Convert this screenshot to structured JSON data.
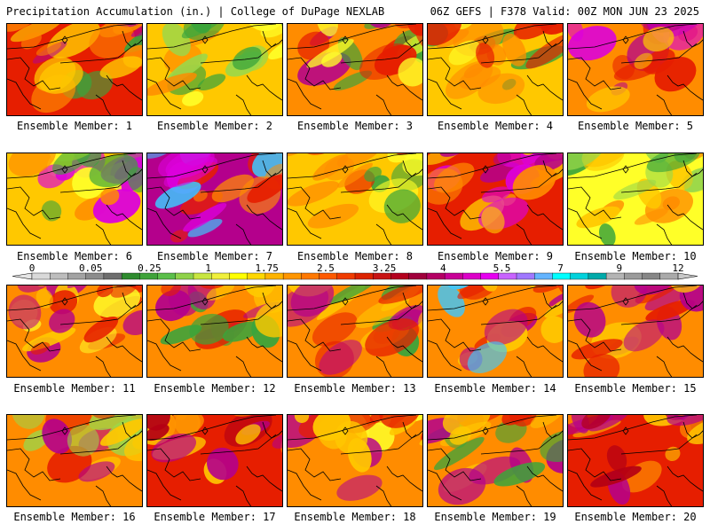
{
  "header": {
    "left": "Precipitation Accumulation (in.) | College of DuPage NEXLAB",
    "right": "06Z GEFS | F378 Valid: 00Z MON JUN 23 2025"
  },
  "caption_prefix": "Ensemble Member: ",
  "members": [
    "1",
    "2",
    "3",
    "4",
    "5",
    "6",
    "7",
    "8",
    "9",
    "10",
    "11",
    "12",
    "13",
    "14",
    "15",
    "16",
    "17",
    "18",
    "19",
    "20"
  ],
  "colorbar": {
    "labels": [
      "0",
      "0.05",
      "0.25",
      "1",
      "1.75",
      "2.5",
      "3.25",
      "4",
      "5.5",
      "7",
      "9",
      "12"
    ],
    "colors": [
      "#d9d9d9",
      "#bdbdbd",
      "#a3a3a3",
      "#8c8c8c",
      "#6e6e6e",
      "#2e8b2e",
      "#3fa33a",
      "#5bbf4a",
      "#8fd24a",
      "#c8e640",
      "#f0f03c",
      "#ffff00",
      "#ffd700",
      "#ffb400",
      "#ff9600",
      "#ff7800",
      "#ff5a00",
      "#f03c00",
      "#dc2300",
      "#c81414",
      "#b4001e",
      "#a0003c",
      "#b40064",
      "#c80096",
      "#dc00c8",
      "#e600f0",
      "#c864ff",
      "#a078ff",
      "#64b4ff",
      "#00ffff",
      "#00d2dc",
      "#00aaaa",
      "#b4b4b4",
      "#9b9b9b",
      "#878787",
      "#aaaaaa"
    ]
  },
  "palette": {
    "green": "#3ba43b",
    "lightgreen": "#9ad84a",
    "yellow": "#ffff28",
    "gold": "#ffc800",
    "orange": "#ff8c00",
    "red": "#e61e00",
    "darkred": "#b40014",
    "magenta": "#b4008c",
    "violet": "#dc00dc",
    "cyan": "#3cc8ff"
  }
}
